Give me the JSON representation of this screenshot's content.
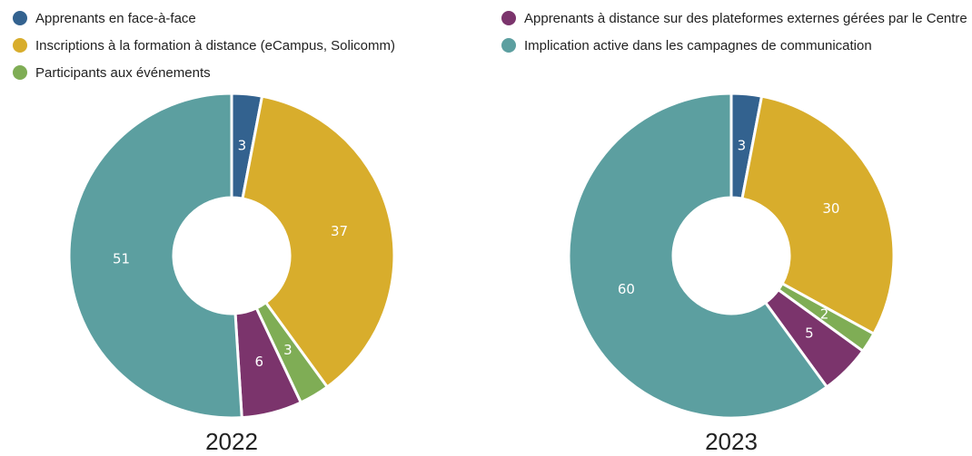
{
  "chart_data": {
    "type": "pie",
    "donut": true,
    "categories": [
      "Apprenants en face-à-face",
      "Inscriptions à la formation à distance (eCampus, Solicomm)",
      "Participants aux événements",
      "Apprenants à distance sur des plateformes externes gérées par le Centre",
      "Implication active dans les campagnes de communication"
    ],
    "colors": [
      "#33628f",
      "#d8ad2c",
      "#7fad55",
      "#7b346c",
      "#5c9fa0"
    ],
    "series": [
      {
        "name": "2022",
        "values": [
          3,
          37,
          3,
          6,
          51
        ]
      },
      {
        "name": "2023",
        "values": [
          3,
          30,
          2,
          5,
          60
        ]
      }
    ]
  }
}
